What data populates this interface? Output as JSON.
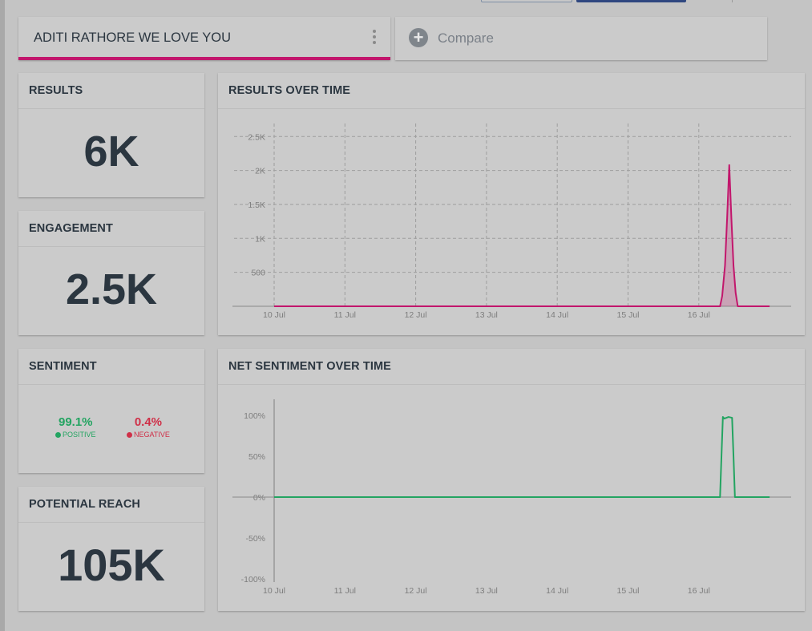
{
  "query": {
    "label": "ADITI RATHORE WE LOVE YOU"
  },
  "compare": {
    "label": "Compare",
    "icon": "plus-circle-icon"
  },
  "results": {
    "title": "RESULTS",
    "value": "6K"
  },
  "engagement": {
    "title": "ENGAGEMENT",
    "value": "2.5K"
  },
  "sentiment": {
    "title": "SENTIMENT",
    "positive_value": "99.1%",
    "positive_label": "POSITIVE",
    "negative_value": "0.4%",
    "negative_label": "NEGATIVE"
  },
  "reach": {
    "title": "POTENTIAL REACH",
    "value": "105K"
  },
  "colors": {
    "accent": "#c2166c",
    "positive": "#23a461",
    "negative": "#cf3048"
  },
  "results_chart": {
    "title": "RESULTS OVER TIME",
    "chart_data": {
      "type": "area",
      "title": "RESULTS OVER TIME",
      "x_ticks": [
        "10 Jul",
        "11 Jul",
        "12 Jul",
        "13 Jul",
        "14 Jul",
        "15 Jul",
        "16 Jul"
      ],
      "y_ticks": [
        "500",
        "1K",
        "1.5K",
        "2K",
        "2.5K"
      ],
      "ylim": [
        0,
        2500
      ],
      "grid": true,
      "color": "#c2166c",
      "series": [
        {
          "values": [
            [
              0,
              0
            ],
            [
              6.3,
              0
            ],
            [
              6.33,
              150
            ],
            [
              6.37,
              600
            ],
            [
              6.4,
              1300
            ],
            [
              6.43,
              2080
            ],
            [
              6.46,
              1300
            ],
            [
              6.49,
              600
            ],
            [
              6.52,
              200
            ],
            [
              6.55,
              0
            ],
            [
              7.0,
              0
            ]
          ]
        }
      ]
    }
  },
  "sentiment_chart": {
    "title": "NET SENTIMENT OVER TIME",
    "chart_data": {
      "type": "line",
      "title": "NET SENTIMENT OVER TIME",
      "x_ticks": [
        "10 Jul",
        "11 Jul",
        "12 Jul",
        "13 Jul",
        "14 Jul",
        "15 Jul",
        "16 Jul"
      ],
      "y_ticks": [
        "100%",
        "50%",
        "0%",
        "-50%",
        "-100%"
      ],
      "ylim": [
        -100,
        100
      ],
      "color": "#23a461",
      "series": [
        {
          "values": [
            [
              0,
              0
            ],
            [
              6.3,
              0
            ],
            [
              6.32,
              50
            ],
            [
              6.34,
              98
            ],
            [
              6.36,
              96
            ],
            [
              6.42,
              98
            ],
            [
              6.47,
              97
            ],
            [
              6.49,
              50
            ],
            [
              6.51,
              0
            ],
            [
              7.0,
              0
            ]
          ]
        }
      ]
    }
  }
}
